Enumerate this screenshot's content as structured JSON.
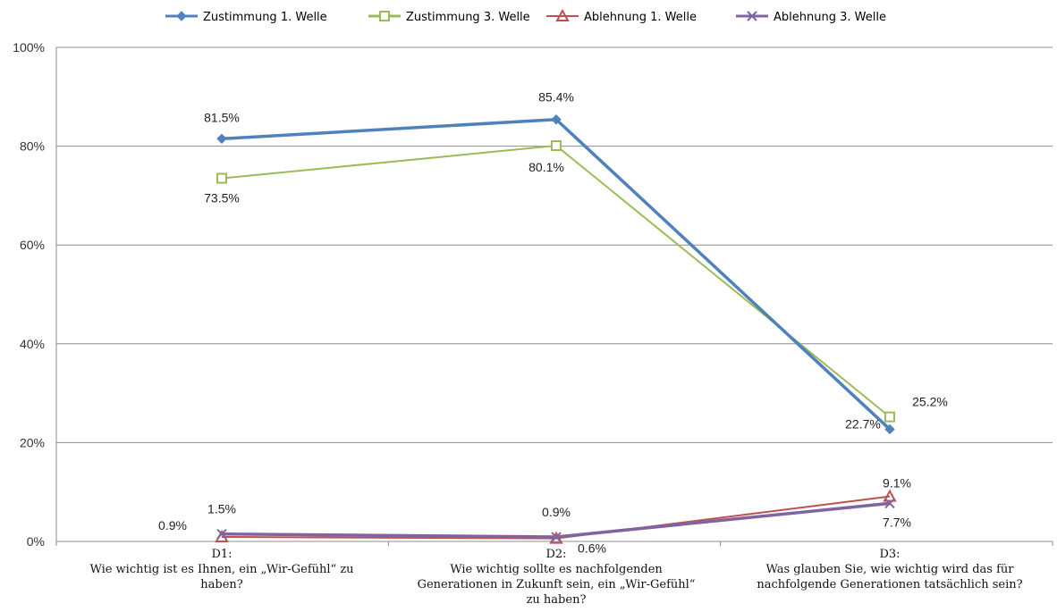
{
  "chart_data": {
    "type": "line",
    "title": "",
    "xlabel": "",
    "ylabel": "",
    "ylim": [
      0,
      100
    ],
    "y_ticks": [
      "0%",
      "20%",
      "40%",
      "60%",
      "80%",
      "100%"
    ],
    "grid": true,
    "legend_position": "top",
    "categories": [
      [
        "D1:",
        "Wie wichtig ist es Ihnen, ein „Wir-Gefühl“ zu",
        "haben?"
      ],
      [
        "D2:",
        "Wie wichtig sollte es  nachfolgenden",
        "Generationen in Zukunft  sein, ein „Wir-Gefühl“",
        "zu haben?"
      ],
      [
        "D3:",
        "Was glauben Sie, wie wichtig wird das für",
        "nachfolgende Generationen tatsächlich sein?"
      ]
    ],
    "series": [
      {
        "name": "Zustimmung 1. Welle",
        "color": "#4f81bd",
        "marker": "diamond",
        "values": [
          81.5,
          85.4,
          22.7
        ],
        "labels": [
          "81.5%",
          "85.4%",
          "22.7%"
        ]
      },
      {
        "name": "Zustimmung 3. Welle",
        "color": "#9bbb59",
        "marker": "square",
        "values": [
          73.5,
          80.1,
          25.2
        ],
        "labels": [
          "73.5%",
          "80.1%",
          "25.2%"
        ]
      },
      {
        "name": "Ablehnung 1. Welle",
        "color": "#c0504d",
        "marker": "triangle",
        "values": [
          0.9,
          0.6,
          9.1
        ],
        "labels": [
          "0.9%",
          "0.6%",
          "9.1%"
        ]
      },
      {
        "name": "Ablehnung 3. Welle",
        "color": "#8064a2",
        "marker": "x",
        "values": [
          1.5,
          0.9,
          7.7
        ],
        "labels": [
          "1.5%",
          "0.9%",
          "7.7%"
        ]
      }
    ]
  }
}
